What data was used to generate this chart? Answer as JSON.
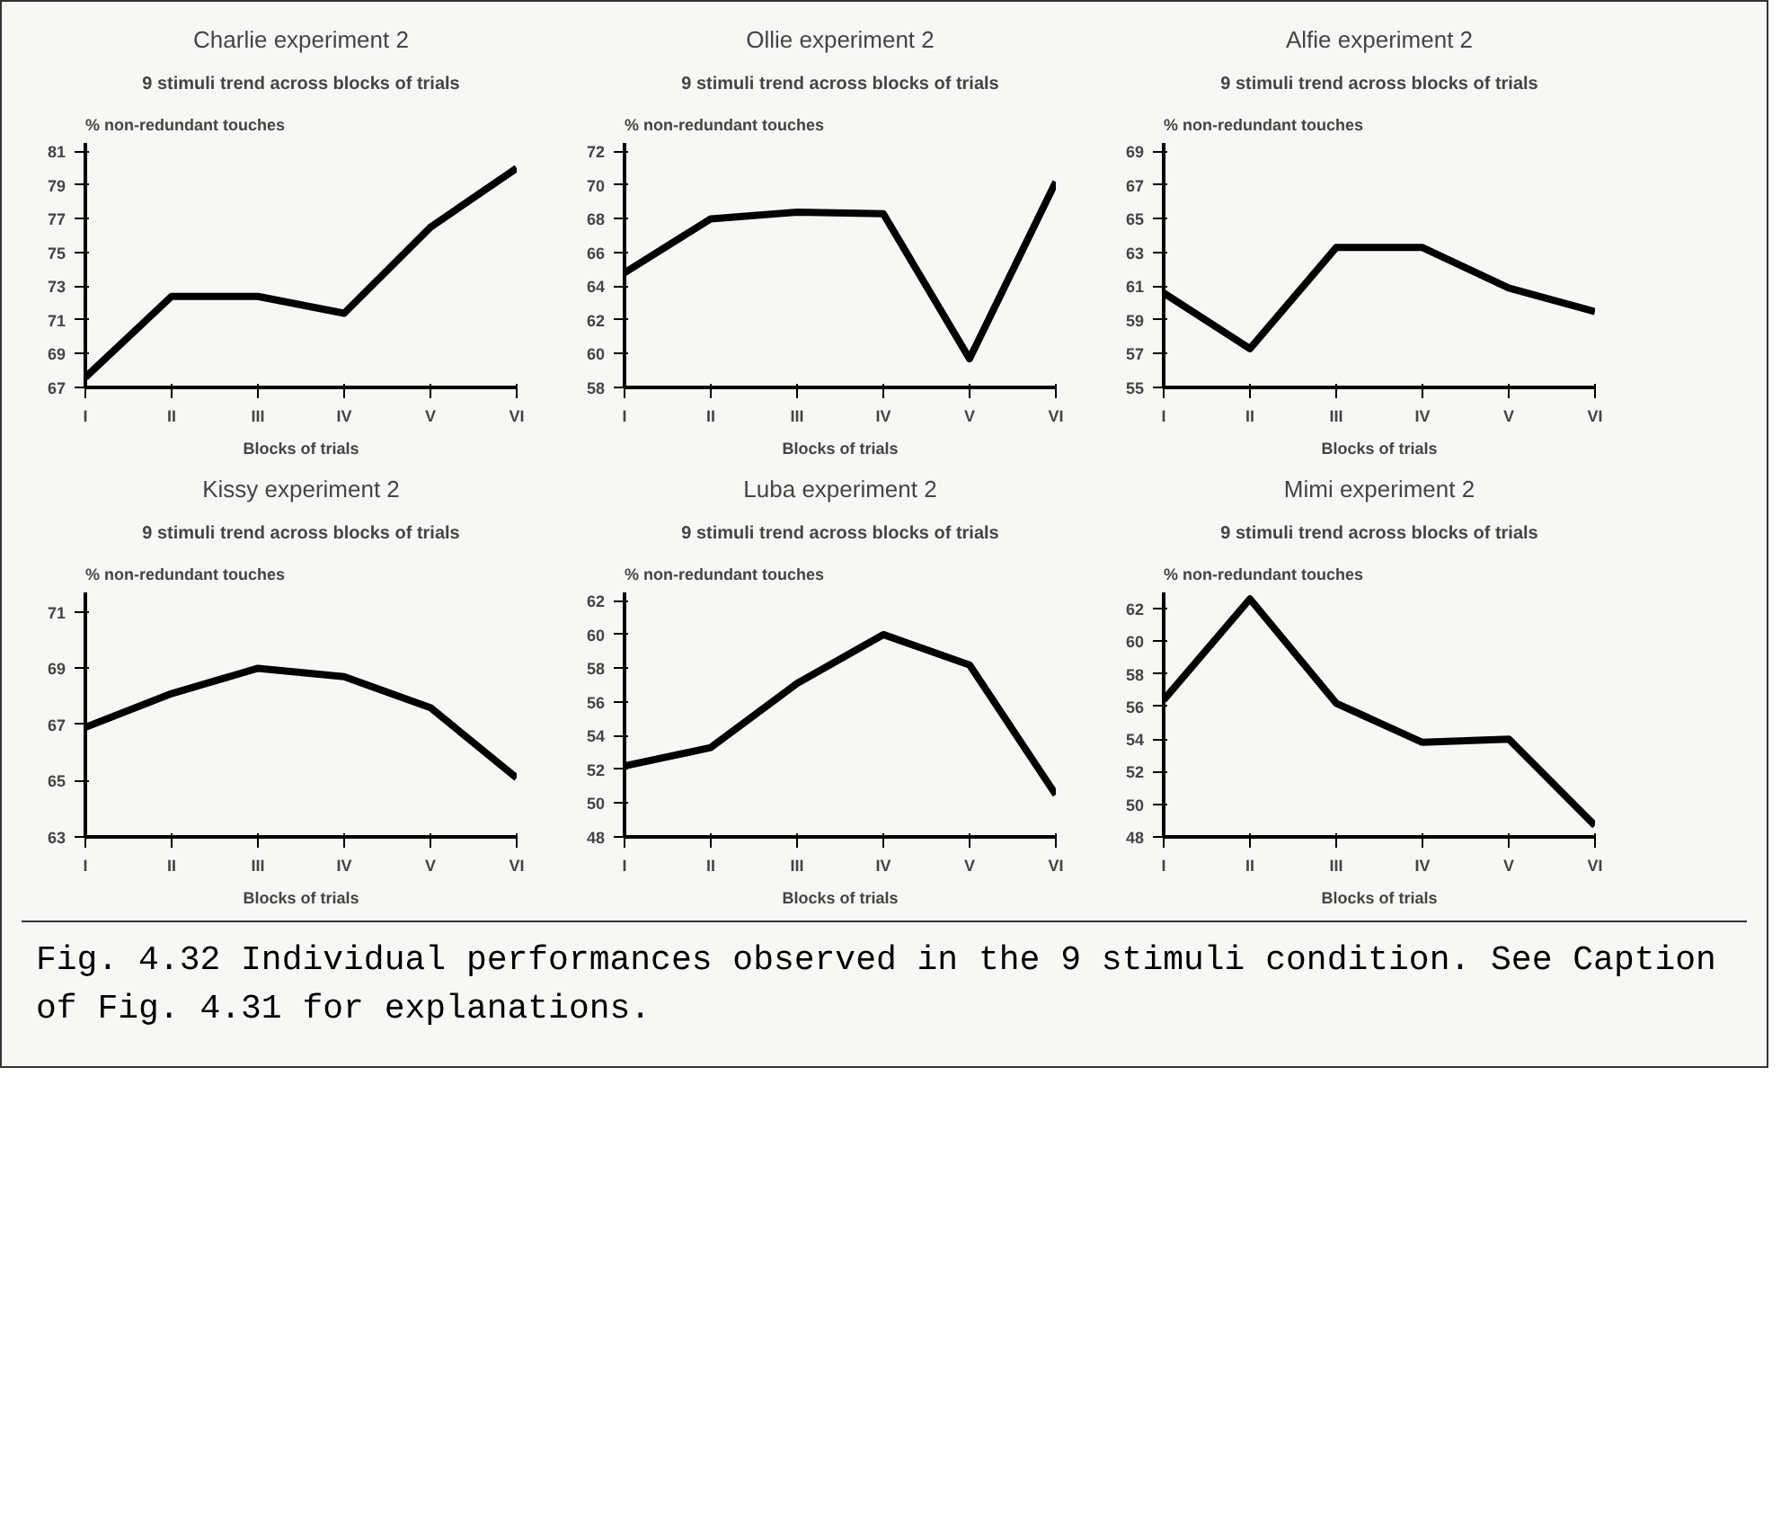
{
  "chart_data": [
    {
      "type": "line",
      "title": "Charlie experiment 2",
      "subtitle": "9 stimuli trend across blocks of trials",
      "ylabel": "% non-redundant touches",
      "xlabel": "Blocks of trials",
      "categories": [
        "I",
        "II",
        "III",
        "IV",
        "V",
        "VI"
      ],
      "series": [
        {
          "color": "#000000",
          "values": [
            67.6,
            72.4,
            72.4,
            71.4,
            76.5,
            80.0
          ]
        }
      ],
      "ylim": [
        67,
        81.5
      ],
      "yticks": [
        67,
        69,
        71,
        73,
        75,
        77,
        79,
        81
      ],
      "grid": false
    },
    {
      "type": "line",
      "title": "Ollie experiment 2",
      "subtitle": "9 stimuli trend across blocks of trials",
      "ylabel": "% non-redundant touches",
      "xlabel": "Blocks of trials",
      "categories": [
        "I",
        "II",
        "III",
        "IV",
        "V",
        "VI"
      ],
      "series": [
        {
          "color": "#000000",
          "values": [
            64.8,
            68.0,
            68.4,
            68.3,
            59.7,
            70.2
          ]
        }
      ],
      "ylim": [
        58,
        72.5
      ],
      "yticks": [
        58,
        60,
        62,
        64,
        66,
        68,
        70,
        72
      ],
      "grid": false
    },
    {
      "type": "line",
      "title": "Alfie experiment 2",
      "subtitle": "9 stimuli trend across blocks of trials",
      "ylabel": "% non-redundant touches",
      "xlabel": "Blocks of trials",
      "categories": [
        "I",
        "II",
        "III",
        "IV",
        "V",
        "VI"
      ],
      "series": [
        {
          "color": "#000000",
          "values": [
            60.6,
            57.3,
            63.3,
            63.3,
            60.9,
            59.5
          ]
        }
      ],
      "ylim": [
        55,
        69.5
      ],
      "yticks": [
        55,
        57,
        59,
        61,
        63,
        65,
        67,
        69
      ],
      "grid": false
    },
    {
      "type": "line",
      "title": "Kissy experiment 2",
      "subtitle": "9 stimuli trend across blocks of trials",
      "ylabel": "% non-redundant touches",
      "xlabel": "Blocks of trials",
      "categories": [
        "I",
        "II",
        "III",
        "IV",
        "V",
        "VI"
      ],
      "series": [
        {
          "color": "#000000",
          "values": [
            66.9,
            68.1,
            69.0,
            68.7,
            67.6,
            65.1
          ]
        }
      ],
      "ylim": [
        63,
        71.7
      ],
      "yticks": [
        63,
        65,
        67,
        69,
        71
      ],
      "grid": false
    },
    {
      "type": "line",
      "title": "Luba experiment 2",
      "subtitle": "9 stimuli trend across blocks of trials",
      "ylabel": "% non-redundant touches",
      "xlabel": "Blocks of trials",
      "categories": [
        "I",
        "II",
        "III",
        "IV",
        "V",
        "VI"
      ],
      "series": [
        {
          "color": "#000000",
          "values": [
            52.2,
            53.3,
            57.1,
            60.0,
            58.2,
            50.5
          ]
        }
      ],
      "ylim": [
        48,
        62.5
      ],
      "yticks": [
        48,
        50,
        52,
        54,
        56,
        58,
        60,
        62
      ],
      "grid": false
    },
    {
      "type": "line",
      "title": "Mimi experiment 2",
      "subtitle": "9 stimuli trend across blocks of trials",
      "ylabel": "% non-redundant touches",
      "xlabel": "Blocks of trials",
      "categories": [
        "I",
        "II",
        "III",
        "IV",
        "V",
        "VI"
      ],
      "series": [
        {
          "color": "#000000",
          "values": [
            56.4,
            62.6,
            56.2,
            53.8,
            54.0,
            48.7
          ]
        }
      ],
      "ylim": [
        48,
        63
      ],
      "yticks": [
        48,
        50,
        52,
        54,
        56,
        58,
        60,
        62
      ],
      "grid": false
    },
    {
      "type": "other",
      "annotations": [
        "Fig. 4.32 Individual performances observed in the 9 stimuli condition. See Caption of Fig. 4.31 for explanations."
      ]
    }
  ]
}
